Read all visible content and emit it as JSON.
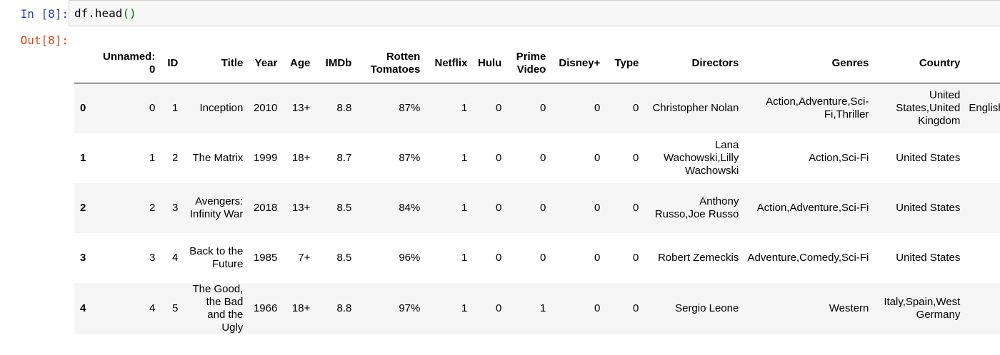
{
  "cell": {
    "in_prompt": "In [8]:",
    "out_prompt": "Out[8]:",
    "code_main": "df.head",
    "code_parens": "()"
  },
  "table": {
    "columns": [
      "",
      "Unnamed: 0",
      "ID",
      "Title",
      "Year",
      "Age",
      "IMDb",
      "Rotten Tomatoes",
      "Netflix",
      "Hulu",
      "Prime Video",
      "Disney+",
      "Type",
      "Directors",
      "Genres",
      "Country",
      ""
    ],
    "rows": [
      [
        "0",
        "0",
        "1",
        "Inception",
        "2010",
        "13+",
        "8.8",
        "87%",
        "1",
        "0",
        "0",
        "0",
        "0",
        "Christopher Nolan",
        "Action,Adventure,Sci-Fi,Thriller",
        "United States,United Kingdom",
        "English,Ja"
      ],
      [
        "1",
        "1",
        "2",
        "The Matrix",
        "1999",
        "18+",
        "8.7",
        "87%",
        "1",
        "0",
        "0",
        "0",
        "0",
        "Lana Wachowski,Lilly Wachowski",
        "Action,Sci-Fi",
        "United States",
        ""
      ],
      [
        "2",
        "2",
        "3",
        "Avengers: Infinity War",
        "2018",
        "13+",
        "8.5",
        "84%",
        "1",
        "0",
        "0",
        "0",
        "0",
        "Anthony Russo,Joe Russo",
        "Action,Adventure,Sci-Fi",
        "United States",
        ""
      ],
      [
        "3",
        "3",
        "4",
        "Back to the Future",
        "1985",
        "7+",
        "8.5",
        "96%",
        "1",
        "0",
        "0",
        "0",
        "0",
        "Robert Zemeckis",
        "Adventure,Comedy,Sci-Fi",
        "United States",
        ""
      ],
      [
        "4",
        "4",
        "5",
        "The Good, the Bad and the Ugly",
        "1966",
        "18+",
        "8.8",
        "97%",
        "1",
        "0",
        "1",
        "0",
        "0",
        "Sergio Leone",
        "Western",
        "Italy,Spain,West Germany",
        ""
      ]
    ]
  }
}
